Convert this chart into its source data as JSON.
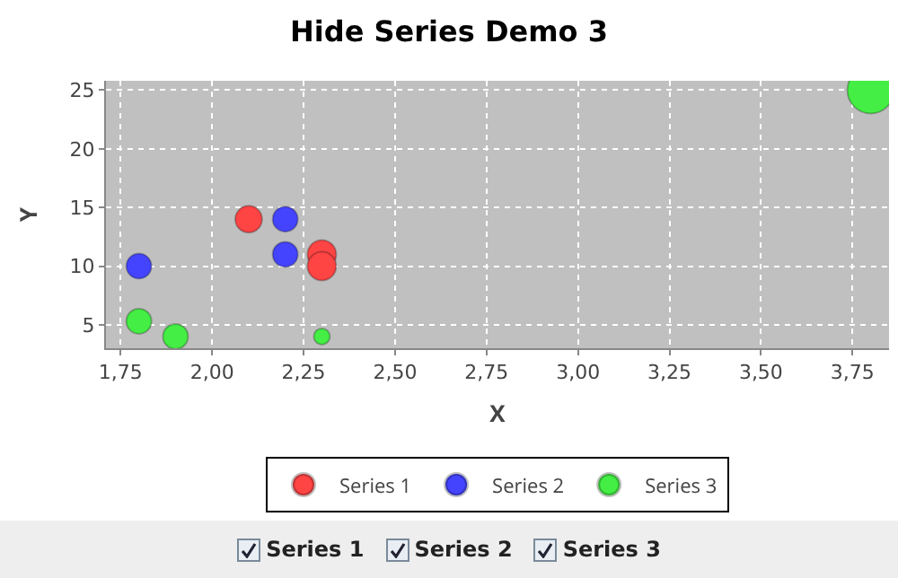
{
  "chart_data": {
    "type": "bubble",
    "title": "Hide Series Demo 3",
    "xlabel": "X",
    "ylabel": "Y",
    "series": [
      {
        "name": "Series 1",
        "color": "#ff4444",
        "x": [
          2.1,
          2.3,
          2.3
        ],
        "values": [
          14,
          11,
          10
        ],
        "sizes": [
          0.33,
          0.38,
          0.38
        ]
      },
      {
        "name": "Series 2",
        "color": "#4444ff",
        "x": [
          1.8,
          2.2,
          2.2
        ],
        "values": [
          10,
          14,
          11
        ],
        "sizes": [
          0.29,
          0.29,
          0.29
        ]
      },
      {
        "name": "Series 3",
        "color": "#44ee44",
        "x": [
          1.8,
          1.9,
          2.3,
          3.8
        ],
        "values": [
          5.3,
          4,
          4,
          25
        ],
        "sizes": [
          0.29,
          0.29,
          0.12,
          1
        ]
      }
    ],
    "xlim": [
      1.71,
      3.85
    ],
    "ylim": [
      3,
      25.8
    ],
    "xticks": [
      {
        "value": 1.75,
        "label": "1,75"
      },
      {
        "value": 2,
        "label": "2,00"
      },
      {
        "value": 2.25,
        "label": "2,25"
      },
      {
        "value": 2.5,
        "label": "2,50"
      },
      {
        "value": 2.75,
        "label": "2,75"
      },
      {
        "value": 3,
        "label": "3,00"
      },
      {
        "value": 3.25,
        "label": "3,25"
      },
      {
        "value": 3.5,
        "label": "3,50"
      },
      {
        "value": 3.75,
        "label": "3,75"
      }
    ],
    "yticks": [
      5,
      10,
      15,
      20,
      25
    ],
    "grid": true,
    "legend": "bottom"
  }
}
